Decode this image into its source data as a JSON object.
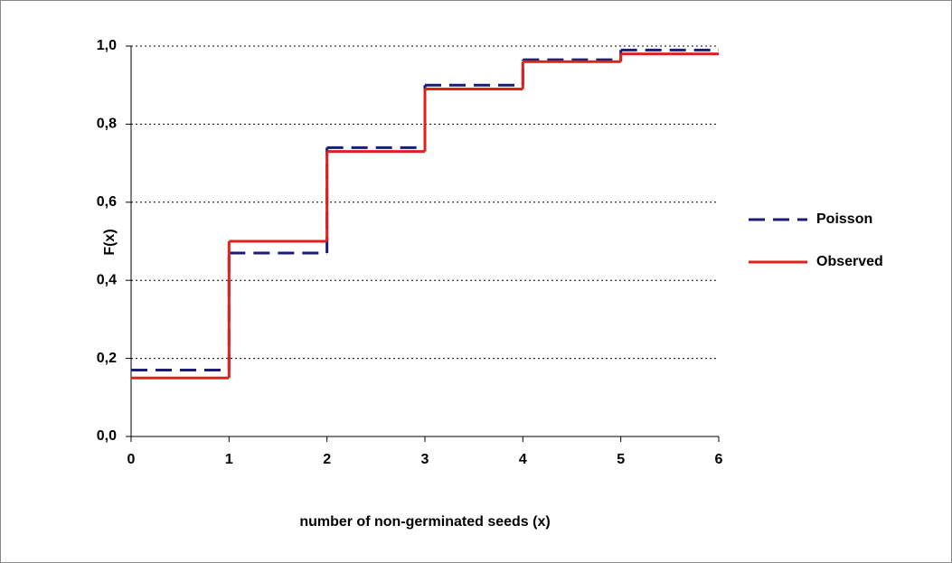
{
  "chart_data": {
    "type": "step",
    "x_label": "number of non-germinated seeds (x)",
    "y_label": "F(x)",
    "x": [
      0,
      1,
      2,
      3,
      4,
      5
    ],
    "series": [
      {
        "name": "Poisson",
        "color": "#1c1c78",
        "dash": true,
        "values": [
          0.17,
          0.47,
          0.74,
          0.9,
          0.965,
          0.99
        ]
      },
      {
        "name": "Observed",
        "color": "#e0201c",
        "dash": false,
        "values": [
          0.15,
          0.5,
          0.73,
          0.89,
          0.96,
          0.98
        ]
      }
    ],
    "xlim": [
      0,
      6
    ],
    "xticks": [
      0,
      1,
      2,
      3,
      4,
      5,
      6
    ],
    "ylim": [
      0,
      1
    ],
    "yticks": [
      {
        "value": 0,
        "label": "0,0"
      },
      {
        "value": 0.2,
        "label": "0,2"
      },
      {
        "value": 0.4,
        "label": "0,4"
      },
      {
        "value": 0.6,
        "label": "0,6"
      },
      {
        "value": 0.8,
        "label": "0,8"
      },
      {
        "value": 1,
        "label": "1,0"
      }
    ],
    "grid": true,
    "legend": "right"
  }
}
